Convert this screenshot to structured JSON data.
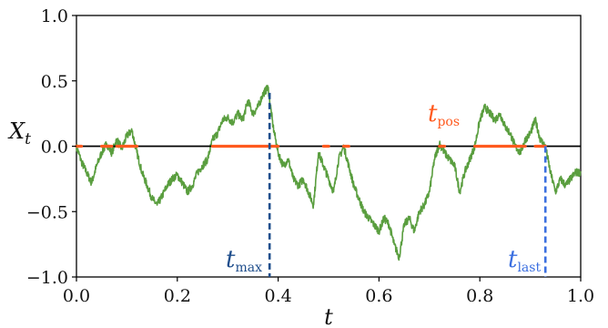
{
  "chart_data": {
    "type": "line",
    "title": "",
    "xlabel": "t",
    "ylabel": "X",
    "ylabel_sub": "t",
    "xlim": [
      0.0,
      1.0
    ],
    "ylim": [
      -1.0,
      1.0
    ],
    "x_ticks": [
      "0.0",
      "0.2",
      "0.4",
      "0.6",
      "0.8",
      "1.0"
    ],
    "y_ticks": [
      "1.0",
      "0.5",
      "0.0",
      "−0.5",
      "−1.0"
    ],
    "grid": false,
    "colors": {
      "path": "#5a9e3f",
      "positive": "#ff5a1f",
      "tmax": "#1f4e8c",
      "tlast": "#3b6fe0",
      "zero_line": "#000000"
    },
    "series": [
      {
        "type": "line",
        "x": [
          0.0,
          0.01,
          0.02,
          0.03,
          0.04,
          0.05,
          0.06,
          0.07,
          0.08,
          0.09,
          0.1,
          0.11,
          0.12,
          0.13,
          0.14,
          0.15,
          0.16,
          0.17,
          0.18,
          0.19,
          0.2,
          0.21,
          0.22,
          0.23,
          0.24,
          0.25,
          0.26,
          0.27,
          0.28,
          0.29,
          0.3,
          0.31,
          0.32,
          0.33,
          0.34,
          0.35,
          0.36,
          0.37,
          0.38,
          0.39,
          0.4,
          0.41,
          0.42,
          0.43,
          0.44,
          0.45,
          0.46,
          0.47,
          0.48,
          0.49,
          0.5,
          0.51,
          0.52,
          0.53,
          0.54,
          0.55,
          0.56,
          0.57,
          0.58,
          0.59,
          0.6,
          0.61,
          0.62,
          0.63,
          0.64,
          0.65,
          0.66,
          0.67,
          0.68,
          0.69,
          0.7,
          0.71,
          0.72,
          0.73,
          0.74,
          0.75,
          0.76,
          0.77,
          0.78,
          0.79,
          0.8,
          0.81,
          0.82,
          0.83,
          0.84,
          0.85,
          0.86,
          0.87,
          0.88,
          0.89,
          0.9,
          0.91,
          0.92,
          0.93,
          0.94,
          0.95,
          0.96,
          0.97,
          0.98,
          0.99,
          1.0
        ],
        "y": [
          0.0,
          -0.12,
          -0.2,
          -0.28,
          -0.15,
          -0.05,
          0.02,
          -0.05,
          0.05,
          -0.02,
          0.08,
          0.12,
          -0.05,
          -0.2,
          -0.3,
          -0.4,
          -0.45,
          -0.38,
          -0.3,
          -0.25,
          -0.22,
          -0.28,
          -0.35,
          -0.3,
          -0.2,
          -0.15,
          -0.1,
          0.05,
          0.1,
          0.2,
          0.22,
          0.18,
          0.25,
          0.2,
          0.35,
          0.25,
          0.3,
          0.4,
          0.45,
          0.15,
          -0.05,
          -0.15,
          -0.1,
          -0.25,
          -0.3,
          -0.25,
          -0.35,
          -0.45,
          -0.05,
          -0.15,
          -0.25,
          -0.35,
          -0.1,
          0.0,
          -0.15,
          -0.3,
          -0.4,
          -0.5,
          -0.55,
          -0.6,
          -0.65,
          -0.55,
          -0.6,
          -0.75,
          -0.85,
          -0.6,
          -0.55,
          -0.65,
          -0.5,
          -0.45,
          -0.35,
          -0.1,
          0.02,
          -0.05,
          -0.1,
          -0.15,
          -0.35,
          -0.2,
          -0.1,
          0.0,
          0.2,
          0.3,
          0.25,
          0.2,
          0.25,
          0.15,
          0.1,
          0.0,
          -0.05,
          0.05,
          0.1,
          0.2,
          0.05,
          0.0,
          -0.2,
          -0.35,
          -0.25,
          -0.3,
          -0.25,
          -0.2,
          -0.2
        ]
      }
    ],
    "positive_intervals": [
      [
        0.0,
        0.01
      ],
      [
        0.05,
        0.07
      ],
      [
        0.08,
        0.12
      ],
      [
        0.27,
        0.4
      ],
      [
        0.49,
        0.5
      ],
      [
        0.53,
        0.54
      ],
      [
        0.72,
        0.73
      ],
      [
        0.79,
        0.89
      ],
      [
        0.91,
        0.93
      ]
    ],
    "annotations": {
      "tmax": {
        "main": "t",
        "sub": "max",
        "x": 0.383
      },
      "tlast": {
        "main": "t",
        "sub": "last",
        "x": 0.93
      },
      "tpos": {
        "main": "t",
        "sub": "pos"
      }
    }
  }
}
